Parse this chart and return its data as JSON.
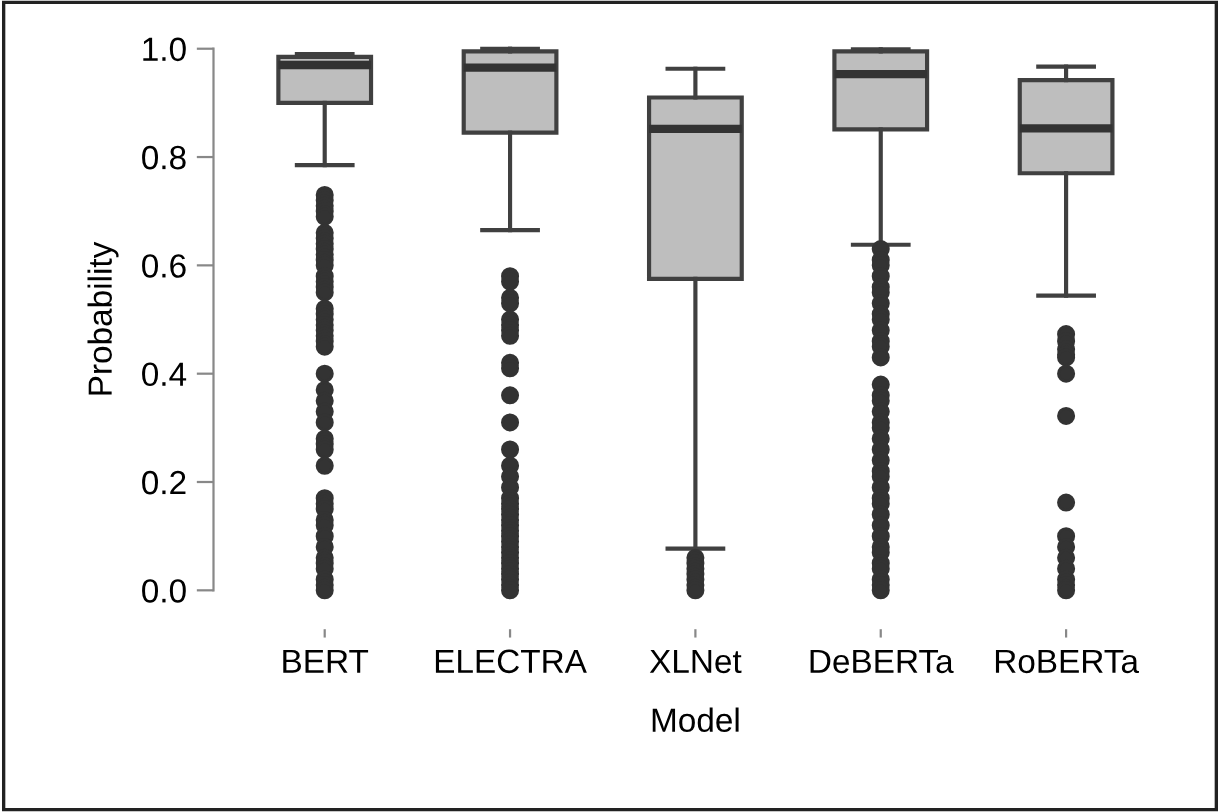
{
  "chart_data": {
    "type": "box",
    "xlabel": "Model",
    "ylabel": "Probability",
    "categories": [
      "BERT",
      "ELECTRA",
      "XLNet",
      "DeBERTa",
      "RoBERTa"
    ],
    "color": "#bebebe",
    "boxes": [
      {
        "low": 0.785,
        "q1": 0.9,
        "median": 0.97,
        "q3": 0.985,
        "high": 0.99,
        "outliers": [
          0.73,
          0.72,
          0.71,
          0.7,
          0.69,
          0.66,
          0.65,
          0.64,
          0.63,
          0.62,
          0.61,
          0.6,
          0.58,
          0.57,
          0.56,
          0.55,
          0.52,
          0.51,
          0.5,
          0.49,
          0.48,
          0.47,
          0.46,
          0.45,
          0.4,
          0.37,
          0.35,
          0.33,
          0.31,
          0.28,
          0.27,
          0.26,
          0.23,
          0.17,
          0.16,
          0.15,
          0.13,
          0.12,
          0.1,
          0.08,
          0.06,
          0.05,
          0.04,
          0.02,
          0.01,
          0.0
        ]
      },
      {
        "low": 0.665,
        "q1": 0.845,
        "median": 0.965,
        "q3": 0.995,
        "high": 1.0,
        "outliers": [
          0.58,
          0.57,
          0.54,
          0.53,
          0.5,
          0.49,
          0.48,
          0.47,
          0.42,
          0.41,
          0.36,
          0.31,
          0.26,
          0.23,
          0.21,
          0.19,
          0.17,
          0.16,
          0.15,
          0.14,
          0.13,
          0.12,
          0.11,
          0.1,
          0.09,
          0.08,
          0.07,
          0.06,
          0.05,
          0.04,
          0.03,
          0.02,
          0.01,
          0.0
        ]
      },
      {
        "low": 0.077,
        "q1": 0.575,
        "median": 0.852,
        "q3": 0.91,
        "high": 0.963,
        "outliers": [
          0.06,
          0.05,
          0.04,
          0.03,
          0.02,
          0.01,
          0.0
        ]
      },
      {
        "low": 0.638,
        "q1": 0.851,
        "median": 0.953,
        "q3": 0.995,
        "high": 0.999,
        "outliers": [
          0.63,
          0.61,
          0.6,
          0.58,
          0.56,
          0.55,
          0.53,
          0.51,
          0.5,
          0.48,
          0.46,
          0.45,
          0.43,
          0.38,
          0.36,
          0.35,
          0.33,
          0.31,
          0.3,
          0.28,
          0.26,
          0.24,
          0.22,
          0.21,
          0.19,
          0.17,
          0.16,
          0.14,
          0.12,
          0.1,
          0.08,
          0.07,
          0.05,
          0.04,
          0.02,
          0.01,
          0.0
        ]
      },
      {
        "low": 0.544,
        "q1": 0.77,
        "median": 0.853,
        "q3": 0.942,
        "high": 0.967,
        "outliers": [
          0.473,
          0.46,
          0.445,
          0.435,
          0.43,
          0.4,
          0.322,
          0.162,
          0.1,
          0.08,
          0.06,
          0.04,
          0.02,
          0.01,
          0.0
        ]
      }
    ],
    "ylim": [
      0,
      1
    ],
    "yticks": [
      {
        "value": 0,
        "label": "0.0"
      },
      0.2,
      0.4,
      0.6,
      0.8,
      {
        "value": 1,
        "label": "1.0"
      }
    ],
    "grid": false
  }
}
